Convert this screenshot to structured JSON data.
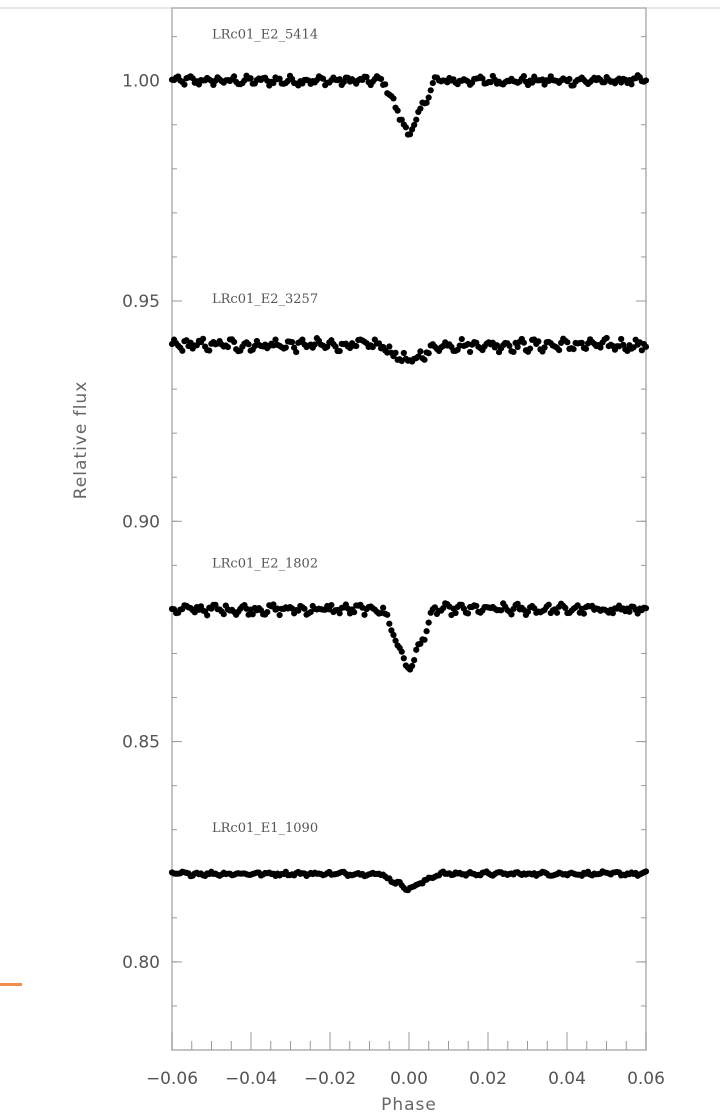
{
  "chart_data": {
    "type": "scatter",
    "xlabel": "Phase",
    "ylabel": "Relative flux",
    "xlim": [
      -0.06,
      0.06
    ],
    "ylim": [
      0.78,
      1.0165
    ],
    "x_ticks": [
      "-0.06",
      "-0.04",
      "-0.02",
      "0.00",
      "0.02",
      "0.04",
      "0.06"
    ],
    "y_ticks": [
      "0.80",
      "0.85",
      "0.90",
      "0.95",
      "1.00"
    ],
    "grid": false,
    "marker_color": "#000000",
    "series": [
      {
        "name": "LRc01_E2_5414",
        "baseline": 1.0,
        "dip_depth": 0.0125,
        "dip_halfwidth": 0.0065,
        "noise": 0.0009
      },
      {
        "name": "LRc01_E2_3257",
        "baseline": 0.94,
        "dip_depth": 0.004,
        "dip_halfwidth": 0.0075,
        "noise": 0.0012
      },
      {
        "name": "LRc01_E2_1802",
        "baseline": 0.88,
        "dip_depth": 0.014,
        "dip_halfwidth": 0.0065,
        "noise": 0.001
      },
      {
        "name": "LRc01_E1_1090",
        "baseline": 0.82,
        "dip_depth": 0.0035,
        "dip_halfwidth": 0.0075,
        "noise": 0.0004
      }
    ]
  }
}
